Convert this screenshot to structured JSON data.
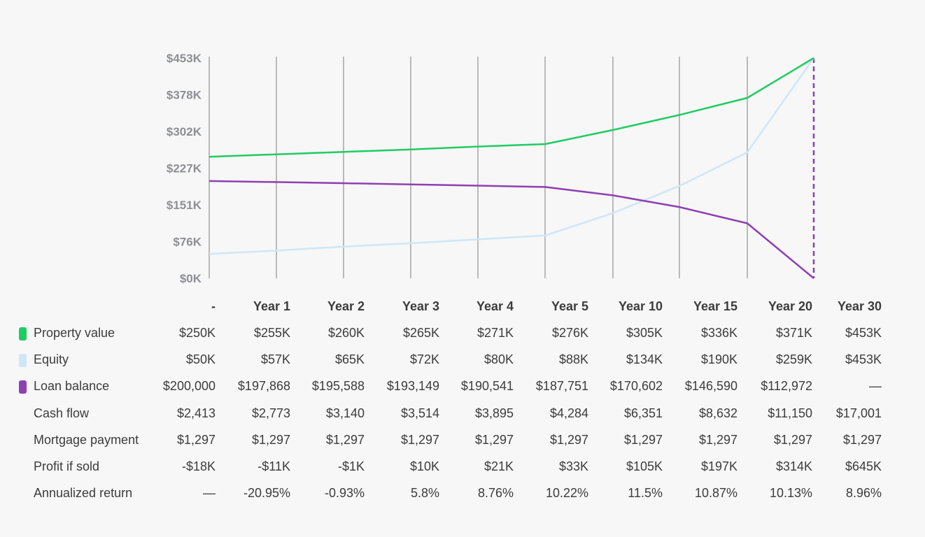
{
  "colors": {
    "property_value": "#1fcc63",
    "equity": "#cfe6f7",
    "loan_balance": "#8e3fb3",
    "gridline": "#9a9a9a",
    "tick_text": "#8d8f94",
    "text": "#3c3c3c",
    "background": "#f7f7f7"
  },
  "chart_data": {
    "type": "line",
    "title": "",
    "xlabel": "",
    "ylabel": "",
    "categories": [
      "-",
      "Year 1",
      "Year 2",
      "Year 3",
      "Year 4",
      "Year 5",
      "Year 10",
      "Year 15",
      "Year 20",
      "Year 30"
    ],
    "y_ticks": [
      "$0K",
      "$76K",
      "$151K",
      "$227K",
      "$302K",
      "$378K",
      "$453K"
    ],
    "ylim": [
      0,
      453000
    ],
    "grid": "vertical",
    "series": [
      {
        "name": "Property value",
        "color": "#1fcc63",
        "values": [
          250000,
          255000,
          260000,
          265000,
          271000,
          276000,
          305000,
          336000,
          371000,
          453000
        ]
      },
      {
        "name": "Equity",
        "color": "#cfe6f7",
        "values": [
          50000,
          57000,
          65000,
          72000,
          80000,
          88000,
          134000,
          190000,
          259000,
          453000
        ]
      },
      {
        "name": "Loan balance",
        "color": "#8e3fb3",
        "values": [
          200000,
          197868,
          195588,
          193149,
          190541,
          187751,
          170602,
          146590,
          112972,
          0
        ]
      }
    ]
  },
  "table": {
    "headers": [
      "-",
      "Year 1",
      "Year 2",
      "Year 3",
      "Year 4",
      "Year 5",
      "Year 10",
      "Year 15",
      "Year 20",
      "Year 30"
    ],
    "rows": [
      {
        "label": "Property value",
        "swatch": "#1fcc63",
        "cells": [
          "$250K",
          "$255K",
          "$260K",
          "$265K",
          "$271K",
          "$276K",
          "$305K",
          "$336K",
          "$371K",
          "$453K"
        ]
      },
      {
        "label": "Equity",
        "swatch": "#cfe6f7",
        "cells": [
          "$50K",
          "$57K",
          "$65K",
          "$72K",
          "$80K",
          "$88K",
          "$134K",
          "$190K",
          "$259K",
          "$453K"
        ]
      },
      {
        "label": "Loan balance",
        "swatch": "#8e3fb3",
        "cells": [
          "$200,000",
          "$197,868",
          "$195,588",
          "$193,149",
          "$190,541",
          "$187,751",
          "$170,602",
          "$146,590",
          "$112,972",
          "—"
        ]
      },
      {
        "label": "Cash flow",
        "swatch": "",
        "cells": [
          "$2,413",
          "$2,773",
          "$3,140",
          "$3,514",
          "$3,895",
          "$4,284",
          "$6,351",
          "$8,632",
          "$11,150",
          "$17,001"
        ]
      },
      {
        "label": "Mortgage payment",
        "swatch": "",
        "cells": [
          "$1,297",
          "$1,297",
          "$1,297",
          "$1,297",
          "$1,297",
          "$1,297",
          "$1,297",
          "$1,297",
          "$1,297",
          "$1,297"
        ]
      },
      {
        "label": "Profit if sold",
        "swatch": "",
        "cells": [
          "-$18K",
          "-$11K",
          "-$1K",
          "$10K",
          "$21K",
          "$33K",
          "$105K",
          "$197K",
          "$314K",
          "$645K"
        ]
      },
      {
        "label": "Annualized return",
        "swatch": "",
        "cells": [
          "—",
          "-20.95%",
          "-0.93%",
          "5.8%",
          "8.76%",
          "10.22%",
          "11.5%",
          "10.87%",
          "10.13%",
          "8.96%"
        ]
      }
    ]
  }
}
